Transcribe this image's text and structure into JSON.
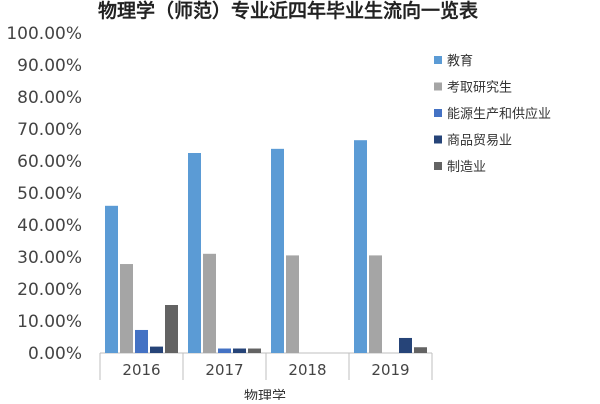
{
  "chart_data": {
    "type": "bar",
    "title": "物理学（师范）专业近四年毕业生流向一览表",
    "xlabel": "物理学",
    "ylabel": "",
    "categories": [
      "2016",
      "2017",
      "2018",
      "2019"
    ],
    "ylim": [
      0,
      100
    ],
    "y_ticks": [
      "0.00%",
      "10.00%",
      "20.00%",
      "30.00%",
      "40.00%",
      "50.00%",
      "60.00%",
      "70.00%",
      "80.00%",
      "90.00%",
      "100.00%"
    ],
    "grid": false,
    "legend_position": "right",
    "series": [
      {
        "name": "教育",
        "color": "#5b9bd5",
        "values": [
          46,
          62.5,
          63.8,
          66.5
        ]
      },
      {
        "name": "考取研究生",
        "color": "#a5a5a5",
        "values": [
          27.8,
          31,
          30.5,
          30.5
        ]
      },
      {
        "name": "能源生产和供应业",
        "color": "#4472c4",
        "values": [
          7.2,
          1.4,
          0,
          0
        ]
      },
      {
        "name": "商品贸易业",
        "color": "#264478",
        "values": [
          2,
          1.4,
          0,
          4.7
        ]
      },
      {
        "name": "制造业",
        "color": "#636363",
        "values": [
          15,
          1.4,
          0,
          1.8
        ]
      }
    ]
  }
}
